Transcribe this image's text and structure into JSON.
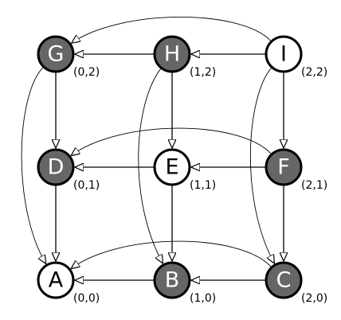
{
  "diagram": {
    "colors": {
      "dark_node_fill": "#666666",
      "light_node_fill": "#ffffff",
      "stroke": "#000000"
    },
    "nodes": [
      {
        "id": "G",
        "label": "G",
        "coord": "(0,2)",
        "filled": true
      },
      {
        "id": "H",
        "label": "H",
        "coord": "(1,2)",
        "filled": true
      },
      {
        "id": "I",
        "label": "I",
        "coord": "(2,2)",
        "filled": false
      },
      {
        "id": "D",
        "label": "D",
        "coord": "(0,1)",
        "filled": true
      },
      {
        "id": "E",
        "label": "E",
        "coord": "(1,1)",
        "filled": false
      },
      {
        "id": "F",
        "label": "F",
        "coord": "(2,1)",
        "filled": true
      },
      {
        "id": "A",
        "label": "A",
        "coord": "(0,0)",
        "filled": false
      },
      {
        "id": "B",
        "label": "B",
        "coord": "(1,0)",
        "filled": true
      },
      {
        "id": "C",
        "label": "C",
        "coord": "(2,0)",
        "filled": true
      }
    ],
    "edges": [
      {
        "from": "H",
        "to": "G",
        "style": "solid"
      },
      {
        "from": "I",
        "to": "H",
        "style": "solid"
      },
      {
        "from": "E",
        "to": "D",
        "style": "solid"
      },
      {
        "from": "F",
        "to": "E",
        "style": "solid"
      },
      {
        "from": "B",
        "to": "A",
        "style": "solid"
      },
      {
        "from": "C",
        "to": "B",
        "style": "solid"
      },
      {
        "from": "G",
        "to": "D",
        "style": "solid"
      },
      {
        "from": "D",
        "to": "A",
        "style": "solid"
      },
      {
        "from": "H",
        "to": "E",
        "style": "solid"
      },
      {
        "from": "E",
        "to": "B",
        "style": "solid"
      },
      {
        "from": "I",
        "to": "F",
        "style": "solid"
      },
      {
        "from": "F",
        "to": "C",
        "style": "solid"
      },
      {
        "from": "I",
        "to": "G",
        "style": "curved"
      },
      {
        "from": "F",
        "to": "D",
        "style": "curved"
      },
      {
        "from": "C",
        "to": "A",
        "style": "curved"
      },
      {
        "from": "G",
        "to": "A",
        "style": "curved"
      },
      {
        "from": "H",
        "to": "B",
        "style": "curved"
      },
      {
        "from": "I",
        "to": "C",
        "style": "curved"
      }
    ]
  }
}
